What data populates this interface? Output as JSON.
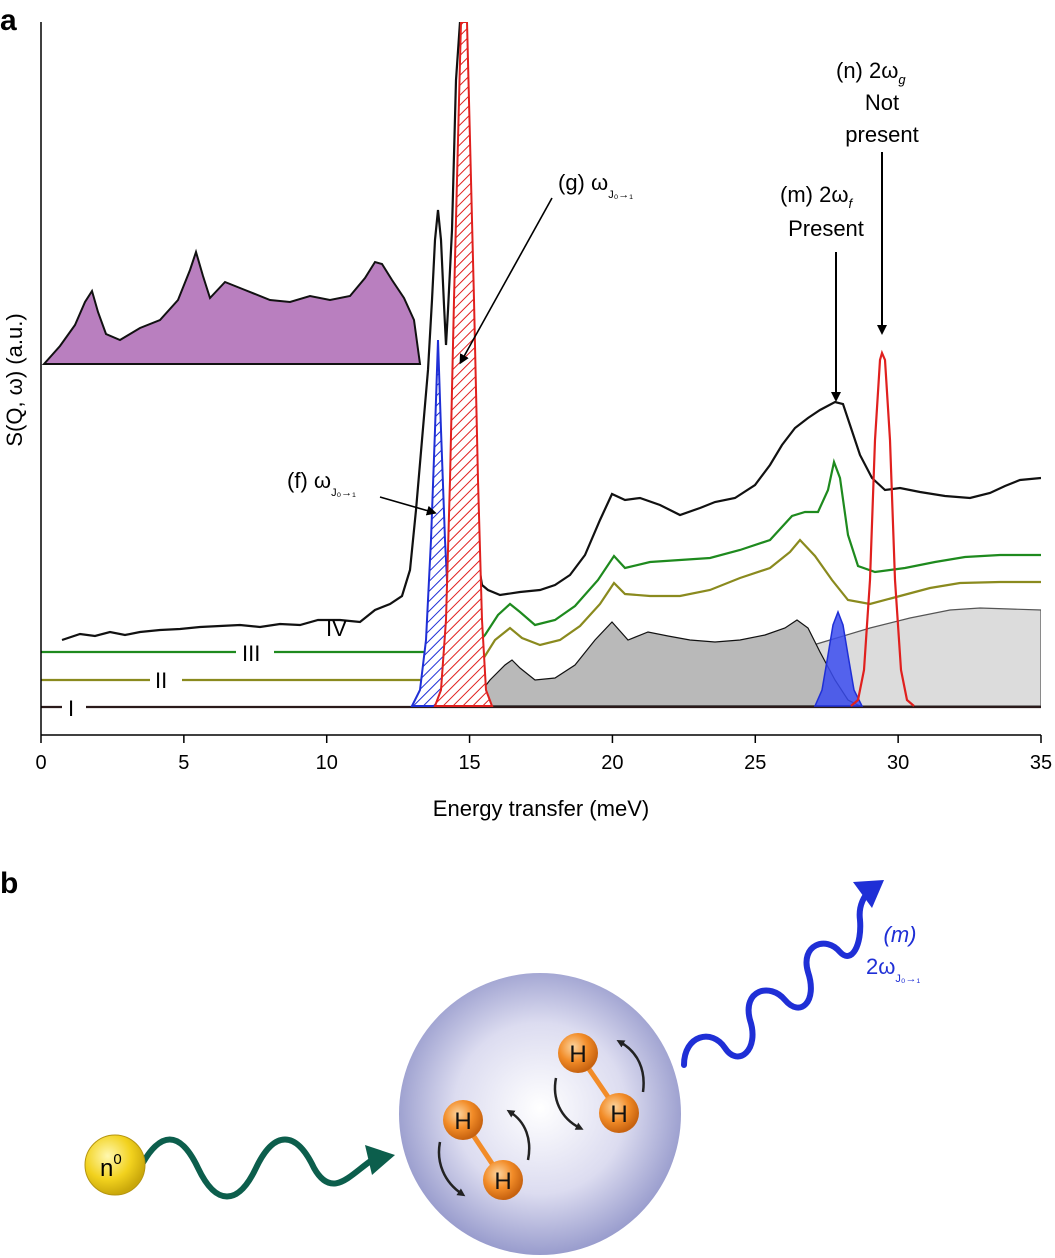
{
  "panel_a": {
    "letter": "a",
    "ylabel": "S(Q, ω) (a.u.)",
    "xlabel": "Energy transfer (meV)",
    "curve_labels": [
      "I",
      "II",
      "III",
      "IV"
    ],
    "annotations": {
      "f": {
        "prefix": "(f) ω",
        "sub": "J₀→₁"
      },
      "g": {
        "prefix": "(g) ω",
        "sub": "J₀→₁"
      },
      "m": {
        "line1": "(m) 2ω",
        "sub": "f",
        "line2": "Present"
      },
      "n": {
        "line1": "(n) 2ω",
        "sub": "g",
        "line2": "Not",
        "line3": "present"
      }
    }
  },
  "panel_b": {
    "letter": "b",
    "neutron_label": "n",
    "neutron_sup": "0",
    "atom_label": "H",
    "emission_label_1": "(m)",
    "emission_label_2": "2ω",
    "emission_sub": "J₀→₁"
  },
  "colors": {
    "purple_fill": "#b97fbf",
    "black": "#000000",
    "green": "#1e8a1e",
    "olive": "#8a8a1e",
    "gray_dark": "#b9b9b9",
    "gray_light": "#dcdcdc",
    "blue": "#1f2fd6",
    "red": "#e0201e",
    "orange": "#f28c28",
    "teal": "#0c5e4c",
    "neutron_yellow": "#f2d21e"
  },
  "chart_data": {
    "type": "line",
    "xlabel": "Energy transfer (meV)",
    "ylabel": "S(Q, ω) (a.u.)",
    "xlim": [
      0,
      35
    ],
    "xticks": [
      0,
      5,
      10,
      15,
      20,
      25,
      30,
      35
    ],
    "ylim": [
      0,
      1
    ],
    "yticks_shown": false,
    "series": [
      {
        "name": "I",
        "x": [
          0,
          15,
          16,
          18,
          20,
          22,
          24,
          26,
          28,
          30,
          32,
          35
        ],
        "y": [
          0,
          0,
          0.003,
          0.01,
          0.03,
          0.06,
          0.09,
          0.125,
          0.15,
          0.16,
          0.158,
          0.154
        ]
      },
      {
        "name": "II",
        "x": [
          0,
          15,
          16.4,
          17,
          19,
          20.2,
          21,
          23,
          25,
          26.6,
          28,
          30,
          33,
          35
        ],
        "y": [
          0.04,
          0.04,
          0.1,
          0.09,
          0.13,
          0.185,
          0.16,
          0.17,
          0.2,
          0.25,
          0.16,
          0.175,
          0.185,
          0.185
        ]
      },
      {
        "name": "III",
        "x": [
          0,
          15,
          16.4,
          17,
          19,
          20.2,
          21,
          23,
          25,
          26.6,
          27.8,
          28.6,
          30,
          33,
          35
        ],
        "y": [
          0.08,
          0.08,
          0.15,
          0.13,
          0.17,
          0.23,
          0.21,
          0.21,
          0.24,
          0.29,
          0.36,
          0.2,
          0.21,
          0.22,
          0.22
        ]
      },
      {
        "name": "IV",
        "x": [
          0.7,
          5,
          10,
          12.5,
          13.5,
          13.9,
          14.3,
          14.6,
          15,
          15.7,
          18,
          20,
          22,
          24,
          26,
          27.8,
          29,
          32,
          35
        ],
        "y": [
          0.1,
          0.11,
          0.12,
          0.15,
          0.28,
          0.68,
          0.53,
          0.98,
          0.3,
          0.18,
          0.2,
          0.31,
          0.28,
          0.3,
          0.4,
          0.45,
          0.32,
          0.32,
          0.34
        ]
      },
      {
        "name": "",
        "x": [
          0,
          1.8,
          3,
          5.5,
          6.5,
          8,
          10,
          11.9,
          13
        ],
        "y": [
          0.5,
          0.61,
          0.56,
          0.67,
          0.62,
          0.6,
          0.6,
          0.66,
          0.54
        ]
      },
      {
        "name": "(f) ω J0→1",
        "peak_center": 13.9,
        "peak_height": 0.54
      },
      {
        "name": "(g) ω J0→1",
        "peak_center": 14.7,
        "peak_height": 1.0
      },
      {
        "name": "(m) 2ω J0→1",
        "peak_center": 27.9,
        "peak_height": 0.14
      },
      {
        "name": "(n) 2ωg",
        "peak_center": 29.4,
        "peak_height": 0.52
      }
    ]
  }
}
